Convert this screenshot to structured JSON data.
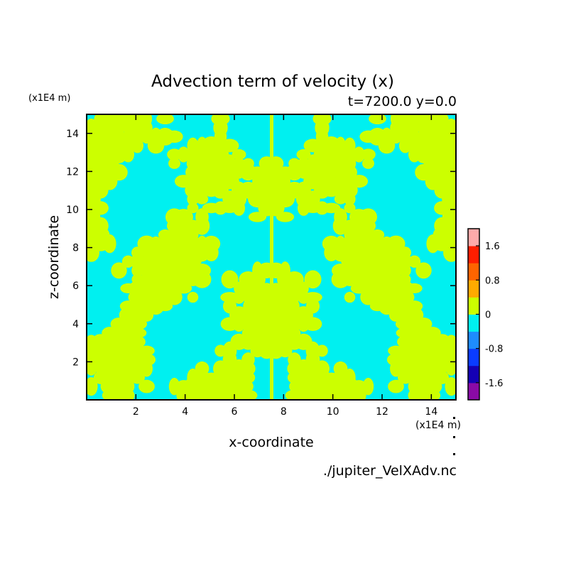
{
  "chart_data": {
    "type": "heatmap",
    "title": "Advection term of velocity (x)",
    "subtitle": "t=7200.0 y=0.0",
    "xlabel": "x-coordinate",
    "ylabel": "z-coordinate",
    "x_unit": "(x1E4 m)",
    "y_unit": "(x1E4 m)",
    "x_ticks": [
      2,
      4,
      6,
      8,
      10,
      12,
      14
    ],
    "y_ticks": [
      2,
      4,
      6,
      8,
      10,
      12,
      14
    ],
    "xlim": [
      0,
      15
    ],
    "ylim": [
      0,
      15
    ],
    "dominant_levels": [
      "-0.4 to 0",
      "0 to 0.4"
    ],
    "colorbar": {
      "levels": [
        -2.0,
        -1.6,
        -1.2,
        -0.8,
        -0.4,
        0,
        0.4,
        0.8,
        1.2,
        1.6,
        2.0
      ],
      "colors": [
        "#8a0aa6",
        "#1400b4",
        "#0a3cff",
        "#1e8cff",
        "#00f0f0",
        "#ccff00",
        "#ffaa00",
        "#ff6400",
        "#ff1e00",
        "#ffaaaa"
      ],
      "tick_labels": [
        "1.6",
        "0.8",
        "0",
        "-0.8",
        "-1.6"
      ],
      "tick_values": [
        1.6,
        0.8,
        0,
        -0.8,
        -1.6
      ]
    }
  },
  "source_file": "./jupiter_VelXAdv.nc"
}
